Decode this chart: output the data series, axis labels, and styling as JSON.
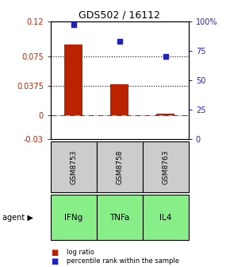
{
  "title": "GDS502 / 16112",
  "samples": [
    "GSM8753",
    "GSM8758",
    "GSM8763"
  ],
  "agents": [
    "IFNg",
    "TNFa",
    "IL4"
  ],
  "log_ratios": [
    0.09,
    0.04,
    0.002
  ],
  "percentile_ranks": [
    97,
    83,
    70
  ],
  "left_yticks": [
    0.12,
    0.075,
    0.0375,
    0,
    -0.03
  ],
  "left_ylabels": [
    "0.12",
    "0.075",
    "0.0375",
    "0",
    "-0.03"
  ],
  "right_yticks": [
    100,
    75,
    50,
    25,
    0
  ],
  "right_ylabels": [
    "100%",
    "75",
    "50",
    "25",
    "0"
  ],
  "ylim_left": [
    -0.03,
    0.12
  ],
  "ylim_right": [
    0,
    100
  ],
  "bar_color": "#bb2200",
  "dot_color": "#2222bb",
  "agent_color": "#88ee88",
  "sample_color": "#cccccc",
  "zero_line_color": "#cc2200",
  "legend_bar_color": "#bb2200",
  "legend_dot_color": "#2222bb",
  "title_fontsize": 9,
  "tick_fontsize": 7,
  "bar_width": 0.4
}
